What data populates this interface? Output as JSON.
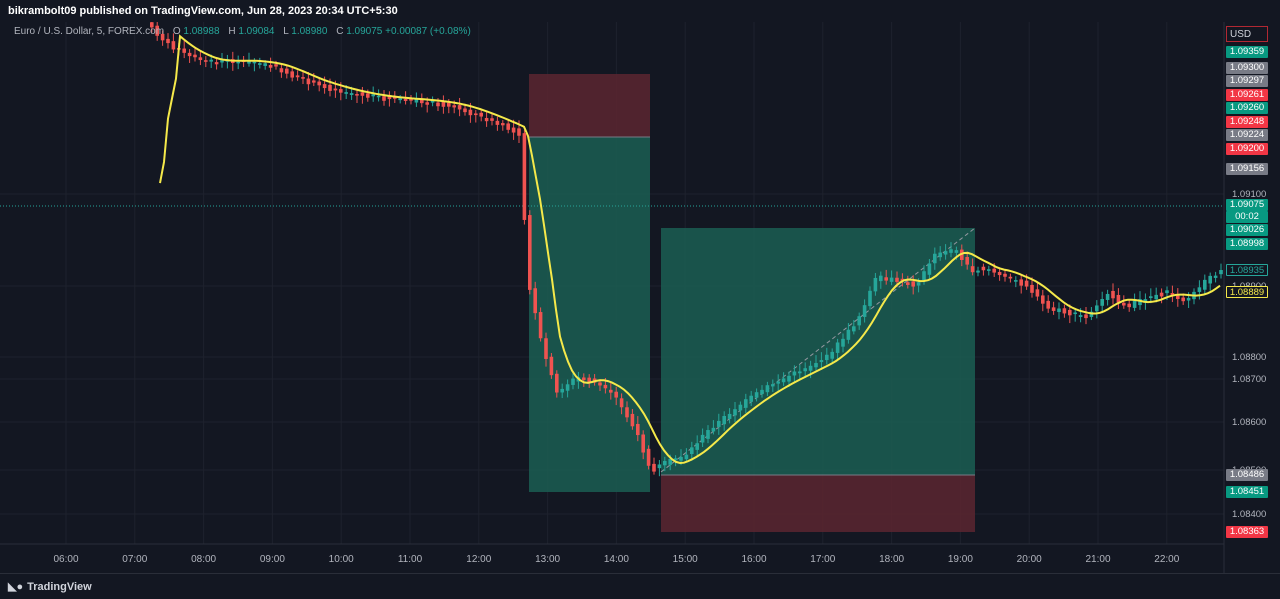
{
  "header": {
    "publish_text": "bikrambolt09 published on TradingView.com, Jun 28, 2023 20:34 UTC+5:30"
  },
  "legend": {
    "symbol": "Euro / U.S. Dollar, 5, FOREX.com",
    "open_key": "O",
    "open_val": "1.08988",
    "high_key": "H",
    "high_val": "1.09084",
    "low_key": "L",
    "low_val": "1.08980",
    "close_key": "C",
    "close_val": "1.09075",
    "change": "+0.00087 (+0.08%)"
  },
  "price_axis": {
    "currency_button": "USD",
    "ticks": [
      "1.09100",
      "1.08900",
      "1.08800",
      "1.08700",
      "1.08600",
      "1.08500",
      "1.08400"
    ],
    "tags": [
      {
        "text": "1.09359",
        "color": "#089981"
      },
      {
        "text": "1.09300",
        "color": "#787b86"
      },
      {
        "text": "1.09297",
        "color": "#787b86"
      },
      {
        "text": "1.09261",
        "color": "#f23645"
      },
      {
        "text": "1.09260",
        "color": "#089981"
      },
      {
        "text": "1.09248",
        "color": "#f23645"
      },
      {
        "text": "1.09224",
        "color": "#787b86"
      },
      {
        "text": "1.09200",
        "color": "#f23645"
      },
      {
        "text": "1.09156",
        "color": "#787b86"
      },
      {
        "text": "1.09075",
        "color": "#089981"
      },
      {
        "text": "00:02",
        "color": "#089981"
      },
      {
        "text": "1.09026",
        "color": "#089981"
      },
      {
        "text": "1.08998",
        "color": "#089981"
      },
      {
        "text": "1.08935",
        "color": "#131722"
      },
      {
        "text": "1.08889",
        "color": "#131722"
      },
      {
        "text": "1.08486",
        "color": "#787b86"
      },
      {
        "text": "1.08451",
        "color": "#089981"
      },
      {
        "text": "1.08363",
        "color": "#f23645"
      }
    ]
  },
  "time_axis": {
    "ticks": [
      "06:00",
      "07:00",
      "08:00",
      "09:00",
      "10:00",
      "11:00",
      "12:00",
      "13:00",
      "14:00",
      "15:00",
      "16:00",
      "17:00",
      "18:00",
      "19:00",
      "20:00",
      "21:00",
      "22:00"
    ]
  },
  "colors": {
    "up": "#26a69a",
    "down": "#ef5350",
    "ma_line": "#f5e94a",
    "profit_zone": "#1b5e52",
    "loss_zone": "#5c2630"
  },
  "footer": {
    "brand": "TradingView"
  }
}
